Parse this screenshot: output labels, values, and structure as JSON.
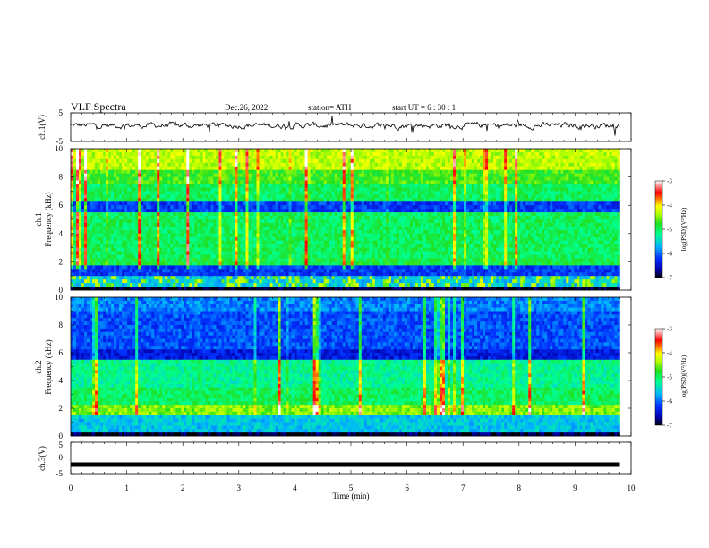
{
  "header": {
    "title": "VLF  Spectra",
    "date": "Dec.26, 2022",
    "station": "station= ATH",
    "start": "start  UT  =   6  : 30 : 1"
  },
  "chart_data": [
    {
      "type": "line",
      "ylabel": "ch.1(V)",
      "ylim": [
        -5,
        5
      ],
      "yticks": [
        "5",
        "-5"
      ],
      "description_level": 0.6
    },
    {
      "type": "heatmap",
      "ylabel_top": "ch.1",
      "ylabel": "Frequency  (kHz)",
      "ylim": [
        0,
        10
      ],
      "yticks": [
        "0",
        "2",
        "4",
        "6",
        "8",
        "10"
      ],
      "colorbar": {
        "label": "log(PSD)(V²/Hz)",
        "ticks": [
          "-3",
          "-4",
          "-5",
          "-6",
          "-7"
        ],
        "range": [
          -7,
          -3
        ]
      }
    },
    {
      "type": "heatmap",
      "ylabel_top": "ch.2",
      "ylabel": "Frequency  (kHz)",
      "ylim": [
        0,
        10
      ],
      "yticks": [
        "0",
        "2",
        "4",
        "6",
        "8",
        "10"
      ],
      "colorbar": {
        "label": "log(PSD)(V²/Hz)",
        "ticks": [
          "-3",
          "-4",
          "-5",
          "-6",
          "-7"
        ],
        "range": [
          -7,
          -3
        ]
      }
    },
    {
      "type": "line",
      "ylabel": "ch.3(V)",
      "ylim": [
        -5,
        5
      ],
      "yticks": [
        "5",
        "0",
        "-5"
      ],
      "level": -2
    }
  ],
  "xaxis": {
    "label": "Time  (min)",
    "range": [
      0,
      10
    ],
    "ticks": [
      "0",
      "1",
      "2",
      "3",
      "4",
      "5",
      "6",
      "7",
      "8",
      "9",
      "10"
    ],
    "data_end": 9.8
  }
}
